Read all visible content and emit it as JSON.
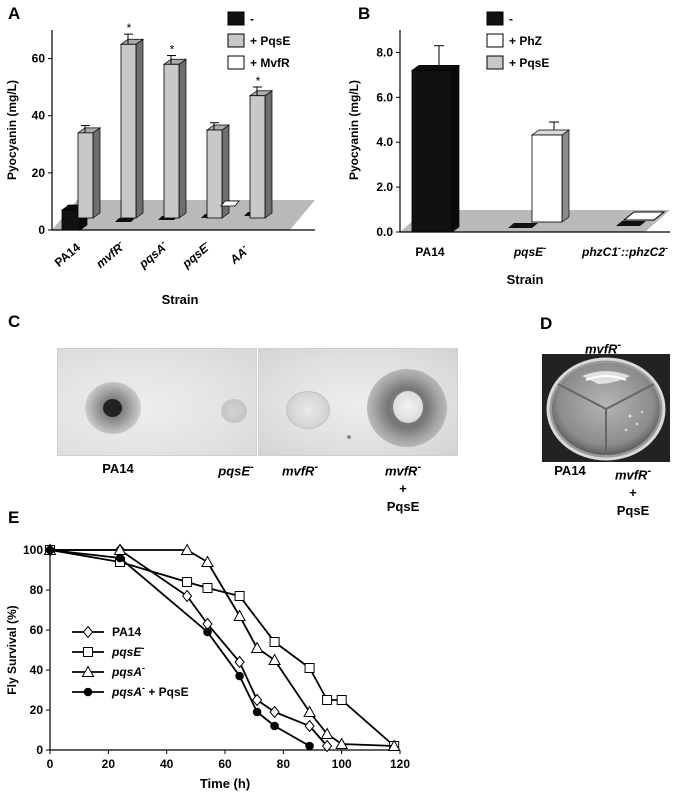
{
  "panel_labels": {
    "a": "A",
    "b": "B",
    "c": "C",
    "d": "D",
    "e": "E"
  },
  "chart_data": [
    {
      "id": "A",
      "type": "bar",
      "ylabel": "Pyocyanin (mg/L)",
      "xlabel": "Strain",
      "ylim": [
        0,
        70
      ],
      "yticks": [
        "0",
        "20",
        "40",
        "60"
      ],
      "categories": [
        "PA14",
        "mvfR",
        "pqsA",
        "pqsE",
        "AA"
      ],
      "category_suffix": [
        "",
        "-",
        "-",
        "-",
        "-"
      ],
      "series": [
        {
          "name": "-",
          "color": "#111111",
          "values": [
            7,
            0,
            0,
            0,
            0
          ]
        },
        {
          "name": "+ PqsE",
          "color": "#c8c8c8",
          "values": [
            34,
            65,
            58,
            35,
            47
          ]
        },
        {
          "name": "+ MvfR",
          "color": "#ffffff",
          "values": [
            null,
            null,
            null,
            0,
            null
          ]
        }
      ],
      "error_bars": [
        [
          1.5,
          null,
          null,
          null,
          null
        ],
        [
          1.5,
          2.5,
          2,
          1.5,
          2
        ],
        [
          null,
          null,
          null,
          null,
          null
        ]
      ],
      "significance_marker": "*",
      "significant": [
        [
          false,
          false,
          false,
          false,
          false
        ],
        [
          false,
          true,
          true,
          false,
          true
        ],
        [
          false,
          false,
          false,
          false,
          false
        ]
      ],
      "legend_position": "top-right"
    },
    {
      "id": "B",
      "type": "bar",
      "ylabel": "Pyocyanin (mg/L)",
      "xlabel": "Strain",
      "ylim": [
        0,
        9
      ],
      "yticks": [
        "0.0",
        "2.0",
        "4.0",
        "6.0",
        "8.0"
      ],
      "categories": [
        "PA14",
        "pqsE",
        "phzC1::phzC2"
      ],
      "series": [
        {
          "name": "-",
          "color": "#111111",
          "values": [
            7.2,
            null,
            null
          ]
        },
        {
          "name": "+ PhZ",
          "color": "#ffffff",
          "values": [
            null,
            4.5,
            0
          ]
        },
        {
          "name": "+ PqsE",
          "color": "#c8c8c8",
          "values": [
            null,
            null,
            null
          ]
        }
      ],
      "error_bars": [
        [
          1.1,
          null,
          null
        ],
        [
          null,
          0.4,
          null
        ],
        [
          null,
          null,
          null
        ]
      ],
      "legend_position": "top-right"
    },
    {
      "id": "E",
      "type": "line",
      "ylabel": "Fly Survival (%)",
      "xlabel": "Time (h)",
      "xlim": [
        0,
        120
      ],
      "ylim": [
        0,
        100
      ],
      "xticks": [
        0,
        20,
        40,
        60,
        80,
        100,
        120
      ],
      "yticks": [
        0,
        20,
        40,
        60,
        80,
        100
      ],
      "legend_position": "left",
      "series": [
        {
          "name": "PA14",
          "marker": "diamond",
          "x": [
            0,
            24,
            47,
            54,
            65,
            71,
            77,
            89,
            95
          ],
          "y": [
            100,
            100,
            77,
            63,
            44,
            25,
            19,
            12,
            2
          ]
        },
        {
          "name": "pqsE",
          "marker": "square",
          "x": [
            0,
            24,
            47,
            54,
            65,
            77,
            89,
            95,
            100,
            118
          ],
          "y": [
            100,
            94,
            84,
            81,
            77,
            54,
            41,
            25,
            25,
            2
          ]
        },
        {
          "name": "pqsA",
          "marker": "triangle",
          "x": [
            0,
            24,
            47,
            54,
            65,
            71,
            77,
            89,
            95,
            100,
            118
          ],
          "y": [
            100,
            100,
            100,
            94,
            67,
            51,
            45,
            19,
            8,
            3,
            2
          ]
        },
        {
          "name": "pqsA + PqsE",
          "marker": "circle",
          "x": [
            0,
            24,
            54,
            65,
            71,
            77,
            89
          ],
          "y": [
            100,
            96,
            59,
            37,
            19,
            12,
            2
          ]
        }
      ],
      "legend_labels": [
        "PA14",
        "pqsE",
        "pqsA",
        "pqsA + PqsE"
      ],
      "legend_suffix": "-"
    }
  ],
  "panel_c": {
    "captions": [
      "PA14",
      "pqsE",
      "mvfR",
      "mvfR",
      "+",
      "PqsE"
    ],
    "suffix": "-"
  },
  "panel_d": {
    "top_label": "mvfR",
    "captions": [
      "PA14",
      "mvfR",
      "+",
      "PqsE"
    ],
    "suffix": "-"
  }
}
